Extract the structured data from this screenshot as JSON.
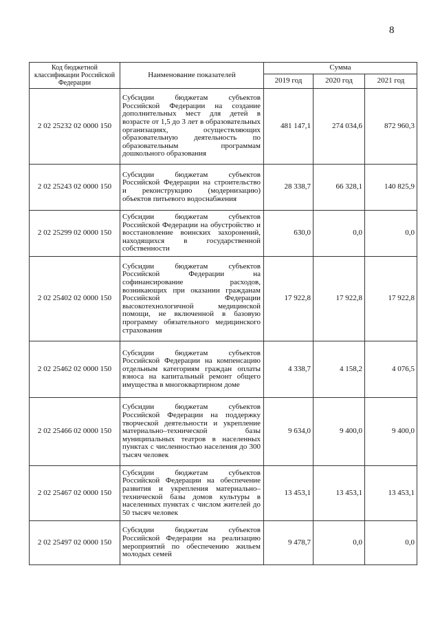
{
  "page_number": "8",
  "table": {
    "headers": {
      "code": "Код бюджетной классификации Российской Федерации",
      "name": "Наименование показателей",
      "sum": "Сумма",
      "years": [
        "2019 год",
        "2020 год",
        "2021 год"
      ]
    },
    "rows": [
      {
        "code": "2 02 25232 02 0000 150",
        "name": "Субсидии бюджетам субъектов Российской Федерации на создание дополнительных мест для детей в возрасте от 1,5 до 3 лет в образовательных организациях, осуществляющих образовательную деятельность по образовательным программам дошкольного образования",
        "y2019": "481 147,1",
        "y2020": "274 034,6",
        "y2021": "872 960,3"
      },
      {
        "code": "2 02 25243 02 0000 150",
        "name": "Субсидии бюджетам субъектов Российской Федерации на строительство и реконструкцию (модернизацию) объектов питьевого водоснабжения",
        "y2019": "28 338,7",
        "y2020": "66 328,1",
        "y2021": "140 825,9"
      },
      {
        "code": "2 02 25299 02 0000 150",
        "name": "Субсидии бюджетам субъектов Российской Федерации на обустройство и восстановление воинских захоронений, находящихся в государственной собственности",
        "y2019": "630,0",
        "y2020": "0,0",
        "y2021": "0,0"
      },
      {
        "code": "2 02 25402 02 0000 150",
        "name": "Субсидии бюджетам субъектов Российской Федерации на софинансирование расходов, возникающих при оказании гражданам Российской Федерации высокотехнологичной медицинской помощи, не включенной в базовую программу обязательного медицинского страхования",
        "y2019": "17 922,8",
        "y2020": "17 922,8",
        "y2021": "17 922,8"
      },
      {
        "code": "2 02 25462 02 0000 150",
        "name": "Субсидии бюджетам субъектов Российской Федерации на компенсацию отдельным категориям граждан оплаты взноса на капитальный ремонт общего имущества в многоквартирном доме",
        "y2019": "4 338,7",
        "y2020": "4 158,2",
        "y2021": "4 076,5"
      },
      {
        "code": "2 02 25466 02 0000 150",
        "name": "Субсидии бюджетам субъектов Российской Федерации на поддержку творческой деятельности и укрепление материально–технической базы муниципальных театров в населенных пунктах с численностью населения до 300 тысяч человек",
        "y2019": "9 634,0",
        "y2020": "9 400,0",
        "y2021": "9 400,0"
      },
      {
        "code": "2 02 25467 02 0000 150",
        "name": "Субсидии бюджетам субъектов Российской Федерации на обеспечение развития и укрепления материально–технической базы домов культуры в населенных пунктах с числом жителей до 50 тысяч человек",
        "y2019": "13 453,1",
        "y2020": "13 453,1",
        "y2021": "13 453,1"
      },
      {
        "code": "2 02 25497 02 0000 150",
        "name": "Субсидии бюджетам субъектов Российской Федерации на реализацию мероприятий по обеспечению жильем молодых семей",
        "y2019": "9 478,7",
        "y2020": "0,0",
        "y2021": "0,0"
      }
    ]
  }
}
